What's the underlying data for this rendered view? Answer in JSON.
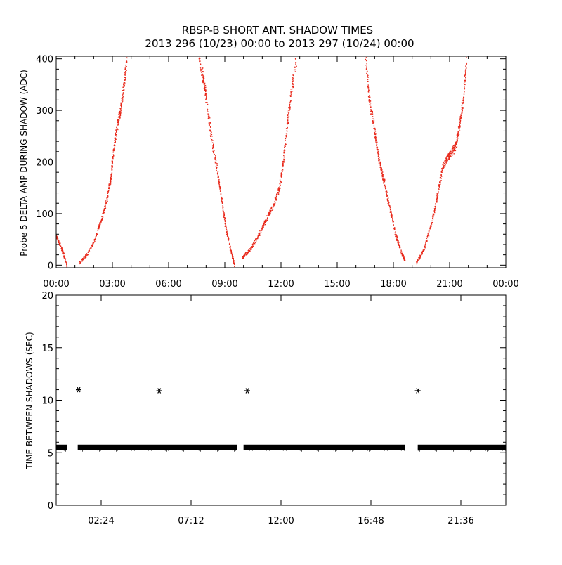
{
  "title": "RBSP-B SHORT ANT. SHADOW TIMES",
  "subtitle": "2013 296 (10/23) 00:00 to 2013 297 (10/24) 00:00",
  "colors": {
    "trace": "#e8291b",
    "marker": "#000000",
    "axis": "#000000",
    "background": "#ffffff"
  },
  "chart_data": [
    {
      "type": "scatter",
      "title": "RBSP-B SHORT ANT. SHADOW TIMES",
      "subtitle": "2013 296 (10/23) 00:00 to 2013 297 (10/24) 00:00",
      "ylabel": "Probe 5 DELTA AMP DURING SHADOW (ADC)",
      "xlabel": "",
      "x_unit": "hours since 2013-10-23 00:00",
      "xlim": [
        0,
        24
      ],
      "ylim": [
        -5,
        405
      ],
      "x_tick_labels": [
        "00:00",
        "03:00",
        "06:00",
        "09:00",
        "12:00",
        "15:00",
        "18:00",
        "21:00",
        "00:00"
      ],
      "x_tick_values": [
        0,
        3,
        6,
        9,
        12,
        15,
        18,
        21,
        24
      ],
      "y_ticks": [
        0,
        100,
        200,
        300,
        400
      ],
      "grid": false,
      "series": [
        {
          "segments": [
            {
              "x": [
                0.0,
                0.3,
                0.55
              ],
              "y": [
                55,
                30,
                0
              ]
            },
            {
              "x": [
                1.2,
                1.6,
                2.0,
                2.4,
                2.7,
                2.9,
                3.0,
                3.2,
                3.4,
                3.6,
                3.75
              ],
              "y": [
                5,
                20,
                45,
                90,
                130,
                170,
                210,
                265,
                300,
                350,
                400
              ]
            },
            {
              "x": [
                7.6,
                7.85,
                8.0,
                8.3,
                8.6,
                8.8,
                9.0,
                9.3,
                9.5
              ],
              "y": [
                400,
                360,
                320,
                240,
                180,
                130,
                80,
                30,
                0
              ]
            },
            {
              "x": [
                9.9,
                10.3,
                10.8,
                11.2,
                11.6,
                11.9,
                12.1,
                12.3,
                12.5,
                12.8
              ],
              "y": [
                15,
                30,
                60,
                90,
                120,
                150,
                200,
                270,
                330,
                400
              ]
            },
            {
              "x": [
                16.5,
                16.7,
                16.9,
                17.1,
                17.3,
                17.5,
                17.8,
                18.1,
                18.4,
                18.6
              ],
              "y": [
                400,
                320,
                280,
                230,
                190,
                160,
                110,
                60,
                25,
                10
              ]
            },
            {
              "x": [
                19.2,
                19.6,
                20.0,
                20.3,
                20.6,
                20.9,
                21.1,
                21.3,
                21.5,
                21.7,
                21.9
              ],
              "y": [
                5,
                30,
                80,
                130,
                190,
                210,
                220,
                230,
                270,
                320,
                400
              ]
            }
          ]
        }
      ]
    },
    {
      "type": "scatter",
      "ylabel": "TIME BETWEEN SHADOWS (SEC)",
      "xlabel": "",
      "x_unit": "hours since 2013-10-23 00:00",
      "xlim": [
        0,
        24
      ],
      "ylim": [
        0,
        20
      ],
      "x_tick_labels": [
        "02:24",
        "07:12",
        "12:00",
        "16:48",
        "21:36"
      ],
      "x_tick_values": [
        2.4,
        7.2,
        12.0,
        16.8,
        21.6
      ],
      "y_ticks": [
        0,
        5,
        10,
        15,
        20
      ],
      "grid": false,
      "marker": "asterisk",
      "baseline": {
        "value": 5.5,
        "ranges": [
          [
            0.0,
            0.6
          ],
          [
            1.15,
            9.65
          ],
          [
            10.0,
            18.6
          ],
          [
            19.3,
            24.0
          ]
        ]
      },
      "points": {
        "x": [
          1.2,
          5.5,
          10.2,
          19.3
        ],
        "y": [
          11.0,
          10.9,
          10.9,
          10.9
        ]
      }
    }
  ]
}
